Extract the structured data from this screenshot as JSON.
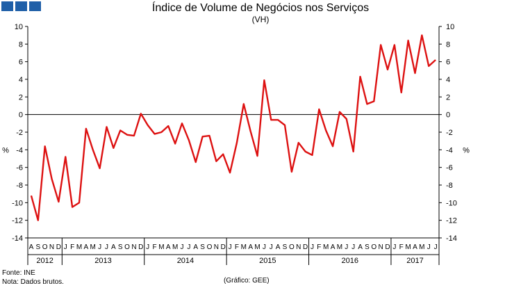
{
  "title": "Índice de Volume de Negócios nos Serviços",
  "subtitle": "(VH)",
  "footer": {
    "source": "Fonte: INE",
    "note": "Nota: Dados brutos.",
    "credit": "(Gráfico: GEE)"
  },
  "colors": {
    "series": "#dd1111",
    "logo": "#1f5fa8",
    "axis": "#000000"
  },
  "chart_data": {
    "type": "line",
    "title": "Índice de Volume de Negócios nos Serviços",
    "subtitle": "(VH)",
    "ylabel_left": "%",
    "ylabel_right": "%",
    "ylim": [
      -14,
      10
    ],
    "yticks": [
      10,
      8,
      6,
      4,
      2,
      0,
      -2,
      -4,
      -6,
      -8,
      -10,
      -12,
      -14
    ],
    "grid": false,
    "month_labels": [
      "A",
      "S",
      "O",
      "N",
      "D",
      "J",
      "F",
      "M",
      "A",
      "M",
      "J",
      "J",
      "A",
      "S",
      "O",
      "N",
      "D",
      "J",
      "F",
      "M",
      "A",
      "M",
      "J",
      "J",
      "A",
      "S",
      "O",
      "N",
      "D",
      "J",
      "F",
      "M",
      "A",
      "M",
      "J",
      "J",
      "A",
      "S",
      "O",
      "N",
      "D",
      "J",
      "F",
      "M",
      "A",
      "M",
      "J",
      "J",
      "A",
      "S",
      "O",
      "N",
      "D",
      "J",
      "F",
      "M",
      "A",
      "M",
      "J",
      "J"
    ],
    "year_labels": [
      {
        "label": "2012",
        "start": 0,
        "count": 5
      },
      {
        "label": "2013",
        "start": 5,
        "count": 12
      },
      {
        "label": "2014",
        "start": 17,
        "count": 12
      },
      {
        "label": "2015",
        "start": 29,
        "count": 12
      },
      {
        "label": "2016",
        "start": 41,
        "count": 12
      },
      {
        "label": "2017",
        "start": 53,
        "count": 7
      }
    ],
    "series": [
      {
        "name": "VH",
        "start": "2012-08",
        "end": "2017-07",
        "values": [
          -9.2,
          -12.0,
          -3.6,
          -7.3,
          -9.9,
          -4.8,
          -10.5,
          -10.0,
          -1.6,
          -4.0,
          -6.1,
          -1.4,
          -3.8,
          -1.8,
          -2.3,
          -2.4,
          0.1,
          -1.2,
          -2.2,
          -2.0,
          -1.3,
          -3.3,
          -1.0,
          -2.9,
          -5.4,
          -2.5,
          -2.4,
          -5.3,
          -4.5,
          -6.6,
          -3.2,
          1.2,
          -1.9,
          -4.7,
          3.9,
          -0.6,
          -0.6,
          -1.2,
          -6.5,
          -3.2,
          -4.2,
          -4.6,
          0.6,
          -1.8,
          -3.6,
          0.3,
          -0.5,
          -4.2,
          4.3,
          1.2,
          1.5,
          7.9,
          5.1,
          7.9,
          2.5,
          8.4,
          4.7,
          9.0,
          5.5,
          6.2
        ]
      }
    ]
  }
}
